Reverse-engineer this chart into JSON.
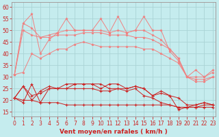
{
  "bg_color": "#c5ecee",
  "grid_color": "#aad4d6",
  "line_color_light": "#f08080",
  "line_color_dark": "#cc2222",
  "x_label": "Vent moyen/en rafales ( km/h )",
  "yticks": [
    15,
    20,
    25,
    30,
    35,
    40,
    45,
    50,
    55,
    60
  ],
  "xticks": [
    0,
    1,
    2,
    3,
    4,
    5,
    6,
    7,
    8,
    9,
    10,
    11,
    12,
    13,
    14,
    15,
    16,
    17,
    18,
    19,
    20,
    21,
    22,
    23
  ],
  "series_light": [
    [
      31,
      53,
      57,
      40,
      46,
      49,
      55,
      50,
      50,
      50,
      55,
      49,
      56,
      49,
      50,
      56,
      50,
      50,
      41,
      37,
      30,
      33,
      30,
      33
    ],
    [
      31,
      53,
      51,
      47,
      48,
      49,
      50,
      50,
      50,
      50,
      50,
      49,
      50,
      49,
      50,
      50,
      48,
      46,
      42,
      38,
      30,
      30,
      30,
      32
    ],
    [
      31,
      50,
      48,
      47,
      47,
      48,
      48,
      48,
      49,
      49,
      49,
      48,
      48,
      48,
      47,
      47,
      46,
      44,
      42,
      38,
      30,
      29,
      29,
      30
    ],
    [
      31,
      32,
      40,
      38,
      40,
      42,
      42,
      44,
      45,
      44,
      43,
      43,
      43,
      43,
      43,
      42,
      42,
      40,
      38,
      36,
      30,
      28,
      28,
      30
    ]
  ],
  "series_dark": [
    [
      21,
      19,
      27,
      19,
      25,
      25,
      27,
      27,
      27,
      27,
      25,
      27,
      27,
      25,
      26,
      25,
      22,
      24,
      22,
      21,
      18,
      18,
      19,
      18
    ],
    [
      21,
      26,
      20,
      24,
      26,
      25,
      25,
      27,
      27,
      27,
      27,
      25,
      25,
      25,
      26,
      25,
      22,
      23,
      22,
      16,
      17,
      18,
      19,
      18
    ],
    [
      21,
      26,
      22,
      23,
      25,
      25,
      25,
      25,
      25,
      25,
      24,
      24,
      25,
      24,
      25,
      22,
      21,
      19,
      18,
      17,
      17,
      17,
      18,
      18
    ],
    [
      21,
      20,
      20,
      19,
      19,
      19,
      18,
      18,
      18,
      18,
      18,
      18,
      18,
      18,
      18,
      18,
      18,
      18,
      18,
      17,
      17,
      17,
      17,
      17
    ]
  ],
  "tick_fontsize": 5.5,
  "xlabel_fontsize": 6.5
}
